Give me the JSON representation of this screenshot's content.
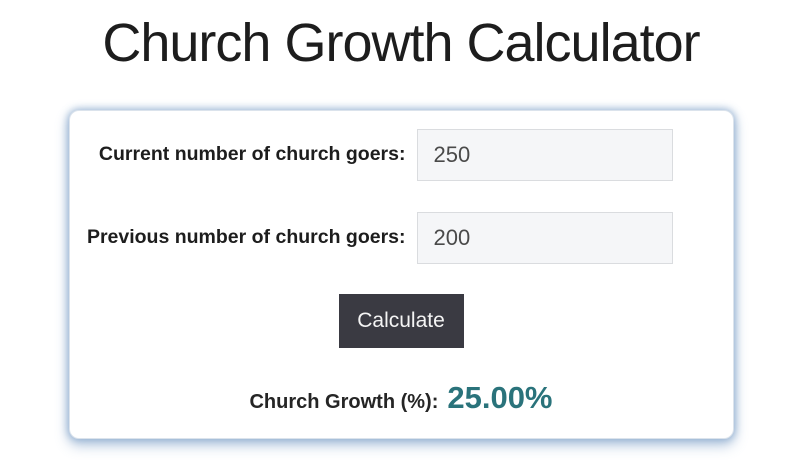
{
  "page": {
    "title": "Church Growth Calculator"
  },
  "calculator": {
    "fields": [
      {
        "label": "Current number of church goers:",
        "value": "250"
      },
      {
        "label": "Previous number of church goers:",
        "value": "200"
      }
    ],
    "button_label": "Calculate",
    "result": {
      "label": "Church Growth (%):",
      "value": "25.00%"
    }
  },
  "colors": {
    "accent_teal": "#2a737b",
    "button_bg": "#3a3a42",
    "card_glow": "#7da0c8",
    "input_bg": "#f5f6f8"
  }
}
